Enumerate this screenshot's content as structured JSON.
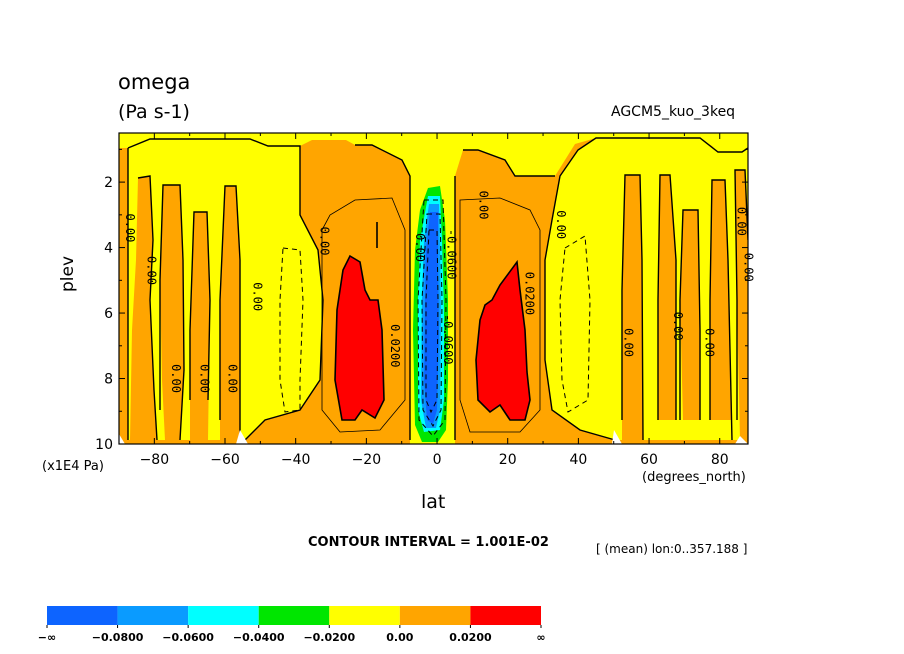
{
  "chart_data": {
    "type": "heatmap",
    "title": "omega",
    "units": "(Pa s-1)",
    "model": "AGCM5_kuo_3keq",
    "xlabel": "lat",
    "ylabel": "plev",
    "x_unit": "(degrees_north)",
    "y_unit": "(x1E4 Pa)",
    "xlim": [
      -90,
      88
    ],
    "ylim": [
      10,
      0.5
    ],
    "x_ticks": [
      "-80",
      "-60",
      "-40",
      "-20",
      "0",
      "20",
      "40",
      "60",
      "80"
    ],
    "y_ticks": [
      "2",
      "4",
      "6",
      "8",
      "10"
    ],
    "contour_interval": "CONTOUR INTERVAL = 1.001E-02",
    "mean_note": "[ (mean) lon:0..357.188 ]",
    "contour_labels": [
      "0.00",
      "0.0200",
      "-0.0600"
    ],
    "colorbar": {
      "boundaries": [
        "-∞",
        "-0.0800",
        "-0.0600",
        "-0.0400",
        "-0.0200",
        "0.00",
        "0.0200",
        "∞"
      ],
      "colors": [
        "#0d64ff",
        "#0a9bff",
        "#00ffff",
        "#00e600",
        "#ffff00",
        "#ffa500",
        "#ff0000"
      ]
    },
    "regions": {
      "min_lat": 0,
      "min_value_range": "< -0.0800",
      "max_lats": [
        -18,
        18
      ],
      "max_value_range": "> 0.0200",
      "background_range": "0.00 to 0.0200",
      "weak_descent_range": "-0.0200 to 0.00"
    }
  }
}
